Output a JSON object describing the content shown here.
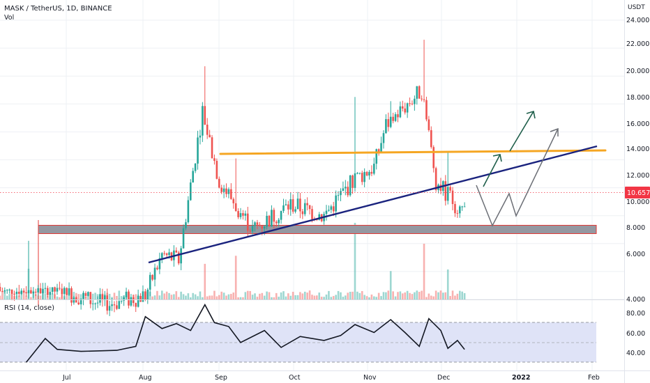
{
  "header": {
    "title": "MASK / TetherUS, 1D, BINANCE",
    "vol_label": "Vol",
    "currency": "USDT"
  },
  "price_axis": {
    "ticks": [
      "24.000",
      "22.000",
      "20.000",
      "18.000",
      "16.000",
      "14.000",
      "12.000",
      "10.000",
      "8.000",
      "6.000",
      "4.000"
    ],
    "last_price": "10.657"
  },
  "rsi_panel": {
    "title": "RSI (14, close)",
    "ticks": [
      "80.00",
      "60.00",
      "40.00"
    ]
  },
  "time_axis": {
    "labels": [
      "Jul",
      "Aug",
      "Sep",
      "Oct",
      "Nov",
      "Dec",
      "2022",
      "Feb"
    ]
  },
  "colors": {
    "bull": "#26a69a",
    "bear": "#ef5350",
    "grid": "#eef0f4",
    "support_zone": "#9598a1",
    "support_border": "#e53935",
    "resistance": "#f5a623",
    "trendline": "#1a237e",
    "arrow_up": "#1e5e4a",
    "path_projection": "#6b6e75",
    "rsi_line": "#131722",
    "rsi_band": "#dfe3f7",
    "last_price": "#f23645"
  },
  "chart_data": {
    "type": "candlestick",
    "title": "MASK / TetherUS, 1D, BINANCE",
    "y_unit": "USDT",
    "ylim": [
      2.9,
      24.8
    ],
    "x_range": [
      "2021-06-01",
      "2022-02-18"
    ],
    "last_price": 10.657,
    "ohlc": [
      [
        "2021-07-01",
        4.6,
        5.0,
        4.2,
        4.4
      ],
      [
        "2021-07-15",
        3.8,
        4.0,
        3.4,
        3.6
      ],
      [
        "2021-08-01",
        3.4,
        4.5,
        3.3,
        4.3
      ],
      [
        "2021-08-08",
        5.6,
        7.6,
        5.4,
        7.2
      ],
      [
        "2021-08-15",
        7.2,
        7.6,
        6.4,
        6.8
      ],
      [
        "2021-08-25",
        7.4,
        20.7,
        7.3,
        17.5
      ],
      [
        "2021-09-01",
        14.0,
        15.0,
        11.5,
        12.5
      ],
      [
        "2021-09-15",
        11.0,
        13.0,
        8.5,
        9.0
      ],
      [
        "2021-10-01",
        9.6,
        12.5,
        9.4,
        10.8
      ],
      [
        "2021-10-15",
        11.5,
        12.3,
        9.5,
        10.0
      ],
      [
        "2021-10-27",
        10.0,
        18.5,
        9.3,
        12.5
      ],
      [
        "2021-11-05",
        11.5,
        14.0,
        11.0,
        13.5
      ],
      [
        "2021-11-10",
        14.0,
        18.2,
        13.0,
        16.5
      ],
      [
        "2021-11-25",
        18.0,
        22.6,
        16.0,
        19.0
      ],
      [
        "2021-12-01",
        15.0,
        16.0,
        10.0,
        12.5
      ],
      [
        "2021-12-10",
        11.5,
        12.0,
        10.5,
        10.66
      ]
    ],
    "annotations": {
      "support_zone": [
        7.5,
        8.1
      ],
      "resistance_line": [
        [
          "2021-09-01",
          13.6
        ],
        [
          "2022-02-15",
          13.9
        ]
      ],
      "ascending_trendline": [
        [
          "2021-08-01",
          5.1
        ],
        [
          "2022-02-15",
          14.3
        ]
      ]
    },
    "rsi": {
      "label": "RSI (14, close)",
      "overbought": 70,
      "oversold": 30,
      "ylim": [
        28,
        92
      ],
      "ticks": [
        80,
        60,
        40
      ],
      "points": [
        [
          "2021-06-12",
          30
        ],
        [
          "2021-06-20",
          54
        ],
        [
          "2021-06-25",
          43
        ],
        [
          "2021-07-05",
          41
        ],
        [
          "2021-07-20",
          42
        ],
        [
          "2021-07-28",
          46
        ],
        [
          "2021-08-01",
          76
        ],
        [
          "2021-08-08",
          64
        ],
        [
          "2021-08-14",
          69
        ],
        [
          "2021-08-20",
          62
        ],
        [
          "2021-08-26",
          88
        ],
        [
          "2021-08-30",
          70
        ],
        [
          "2021-09-05",
          66
        ],
        [
          "2021-09-10",
          50
        ],
        [
          "2021-09-20",
          62
        ],
        [
          "2021-09-27",
          45
        ],
        [
          "2021-10-05",
          56
        ],
        [
          "2021-10-15",
          52
        ],
        [
          "2021-10-22",
          57
        ],
        [
          "2021-10-28",
          68
        ],
        [
          "2021-11-05",
          60
        ],
        [
          "2021-11-12",
          73
        ],
        [
          "2021-11-18",
          60
        ],
        [
          "2021-11-24",
          46
        ],
        [
          "2021-11-28",
          74
        ],
        [
          "2021-12-03",
          62
        ],
        [
          "2021-12-06",
          44
        ],
        [
          "2021-12-10",
          52
        ],
        [
          "2021-12-13",
          43
        ]
      ]
    }
  }
}
